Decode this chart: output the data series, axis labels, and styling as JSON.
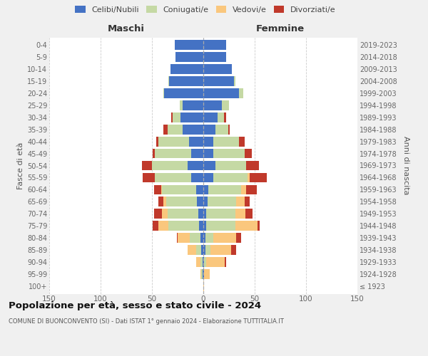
{
  "age_groups": [
    "100+",
    "95-99",
    "90-94",
    "85-89",
    "80-84",
    "75-79",
    "70-74",
    "65-69",
    "60-64",
    "55-59",
    "50-54",
    "45-49",
    "40-44",
    "35-39",
    "30-34",
    "25-29",
    "20-24",
    "15-19",
    "10-14",
    "5-9",
    "0-4"
  ],
  "birth_years": [
    "≤ 1923",
    "1924-1928",
    "1929-1933",
    "1934-1938",
    "1939-1943",
    "1944-1948",
    "1949-1953",
    "1954-1958",
    "1959-1963",
    "1964-1968",
    "1969-1973",
    "1974-1978",
    "1979-1983",
    "1984-1988",
    "1989-1993",
    "1994-1998",
    "1999-2003",
    "2004-2008",
    "2009-2013",
    "2014-2018",
    "2019-2023"
  ],
  "maschi": {
    "celibi": [
      0,
      1,
      1,
      2,
      3,
      4,
      5,
      6,
      7,
      12,
      15,
      12,
      14,
      20,
      22,
      20,
      38,
      33,
      32,
      27,
      28
    ],
    "coniugati": [
      0,
      1,
      2,
      5,
      10,
      30,
      30,
      30,
      33,
      35,
      35,
      35,
      30,
      15,
      8,
      3,
      1,
      1,
      0,
      0,
      0
    ],
    "vedovi": [
      0,
      1,
      4,
      8,
      12,
      10,
      5,
      3,
      1,
      0,
      0,
      0,
      0,
      0,
      0,
      0,
      0,
      0,
      0,
      0,
      0
    ],
    "divorziati": [
      0,
      0,
      0,
      0,
      1,
      5,
      8,
      5,
      7,
      12,
      10,
      2,
      2,
      4,
      1,
      0,
      0,
      0,
      0,
      0,
      0
    ]
  },
  "femmine": {
    "nubili": [
      0,
      1,
      1,
      2,
      2,
      3,
      3,
      4,
      5,
      10,
      12,
      10,
      10,
      12,
      14,
      18,
      35,
      30,
      28,
      22,
      22
    ],
    "coniugate": [
      0,
      0,
      2,
      5,
      8,
      28,
      28,
      28,
      32,
      33,
      30,
      30,
      25,
      12,
      6,
      7,
      4,
      1,
      0,
      0,
      0
    ],
    "vedove": [
      1,
      5,
      18,
      20,
      22,
      22,
      10,
      8,
      5,
      2,
      0,
      0,
      0,
      0,
      0,
      0,
      0,
      0,
      0,
      0,
      0
    ],
    "divorziate": [
      0,
      0,
      1,
      5,
      5,
      2,
      7,
      5,
      10,
      17,
      12,
      7,
      5,
      2,
      2,
      0,
      0,
      0,
      0,
      0,
      0
    ]
  },
  "color_celibi": "#4472C4",
  "color_coniugati": "#C5D9A4",
  "color_vedovi": "#FAC77D",
  "color_divorziati": "#C0392B",
  "title": "Popolazione per età, sesso e stato civile - 2024",
  "subtitle": "COMUNE DI BUONCONVENTO (SI) - Dati ISTAT 1° gennaio 2024 - Elaborazione TUTTITALIA.IT",
  "xlabel_left": "Maschi",
  "xlabel_right": "Femmine",
  "ylabel_left": "Fasce di età",
  "ylabel_right": "Anni di nascita",
  "xlim": 150,
  "bg_color": "#f0f0f0",
  "plot_bg": "#ffffff",
  "legend_labels": [
    "Celibi/Nubili",
    "Coniugati/e",
    "Vedovi/e",
    "Divorziati/e"
  ]
}
